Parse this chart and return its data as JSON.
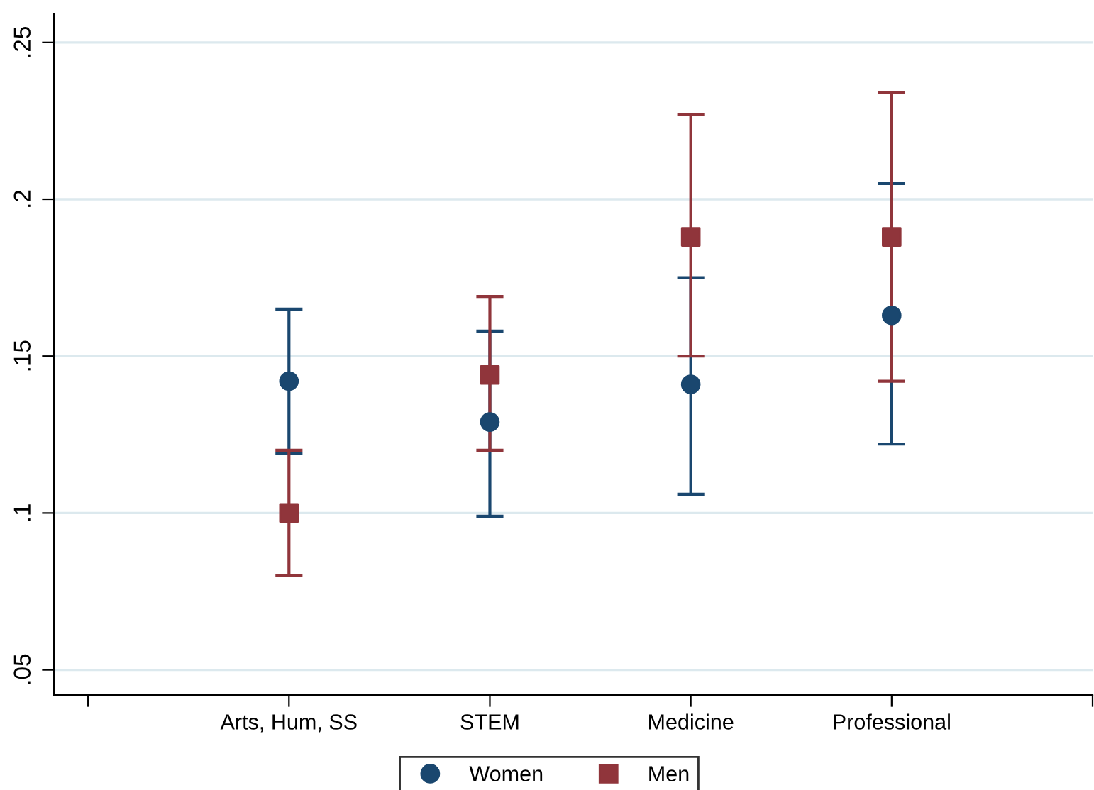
{
  "chart_data": {
    "type": "scatter",
    "categories": [
      null,
      "Arts, Hum, SS",
      "STEM",
      "Medicine",
      "Professional",
      null
    ],
    "series": [
      {
        "name": "Women",
        "color": "#1a476f",
        "marker": "circle",
        "values": [
          null,
          0.142,
          0.129,
          0.141,
          0.163,
          null
        ],
        "errors": [
          null,
          [
            0.119,
            0.165
          ],
          [
            0.099,
            0.158
          ],
          [
            0.106,
            0.175
          ],
          [
            0.122,
            0.205
          ],
          null
        ]
      },
      {
        "name": "Men",
        "color": "#90353b",
        "marker": "square",
        "values": [
          null,
          0.1,
          0.144,
          0.188,
          0.188,
          null
        ],
        "errors": [
          null,
          [
            0.08,
            0.12
          ],
          [
            0.12,
            0.169
          ],
          [
            0.15,
            0.227
          ],
          [
            0.142,
            0.234
          ],
          null
        ]
      }
    ],
    "ylim": [
      0.042,
      0.259
    ],
    "yticks": [
      {
        "value": 0.05,
        "label": ".05"
      },
      {
        "value": 0.1,
        "label": ".1"
      },
      {
        "value": 0.15,
        "label": ".15"
      },
      {
        "value": 0.2,
        "label": ".2"
      },
      {
        "value": 0.25,
        "label": ".25"
      }
    ],
    "grid": "y",
    "legend": "bottom"
  }
}
